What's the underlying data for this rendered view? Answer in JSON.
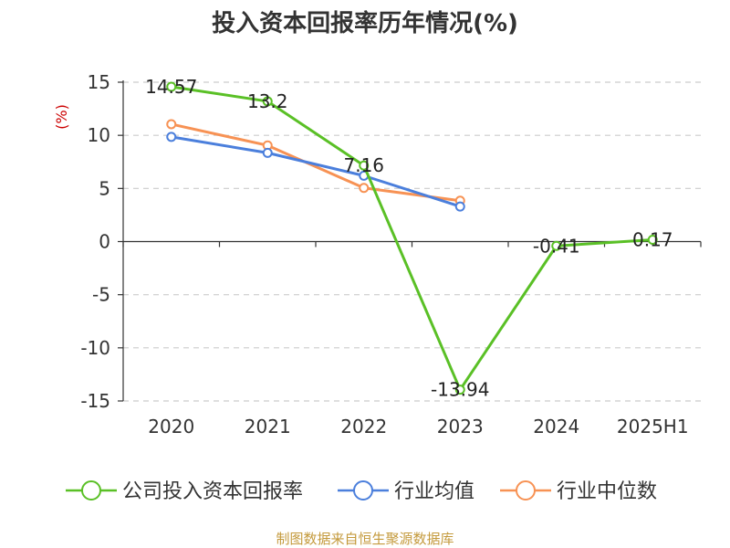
{
  "chart_data": {
    "type": "line",
    "title": "投入资本回报率历年情况(%)",
    "ylabel": "(%)",
    "xlabel": "",
    "categories": [
      "2020",
      "2021",
      "2022",
      "2023",
      "2024",
      "2025H1"
    ],
    "ylim": [
      -15,
      15
    ],
    "yticks": [
      15,
      10,
      5,
      0,
      -5,
      -10,
      -15
    ],
    "grid": true,
    "legend_position": "bottom",
    "series": [
      {
        "name": "公司投入资本回报率",
        "color": "#5ac026",
        "values": [
          14.57,
          13.2,
          7.16,
          -13.94,
          -0.41,
          0.17
        ],
        "labels": [
          "14.57",
          "13.2",
          "7.16",
          "-13.94",
          "-0.41",
          "0.17"
        ]
      },
      {
        "name": "行业均值",
        "color": "#4b7fdc",
        "values": [
          9.85,
          8.35,
          6.2,
          3.3,
          null,
          null
        ],
        "labels": []
      },
      {
        "name": "行业中位数",
        "color": "#f79254",
        "values": [
          11.05,
          9.05,
          5.05,
          3.85,
          null,
          null
        ],
        "labels": []
      }
    ],
    "source": "制图数据来自恒生聚源数据库"
  }
}
